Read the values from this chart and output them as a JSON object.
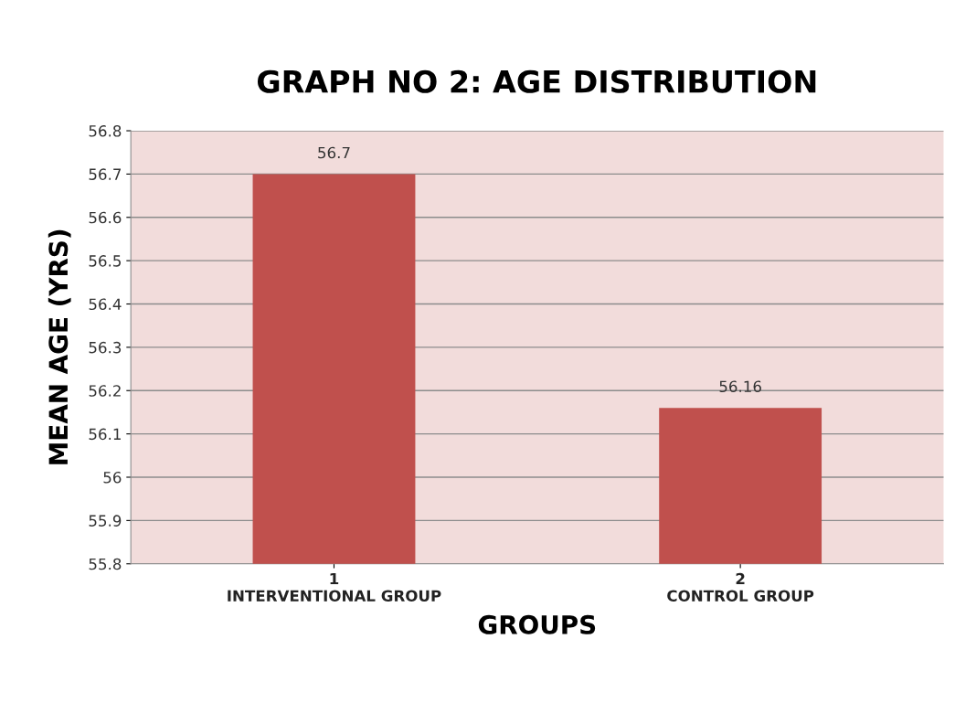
{
  "chart_data": {
    "type": "bar",
    "title": "GRAPH NO 2: AGE DISTRIBUTION",
    "xlabel": "GROUPS",
    "ylabel": "MEAN AGE (YRS)",
    "categories": [
      "1\nINTERVENTIONAL GROUP",
      "2\nCONTROL GROUP"
    ],
    "values": [
      56.7,
      56.16
    ],
    "color": "#c0504d",
    "ylim": [
      55.8,
      56.8
    ],
    "yticks": [
      55.8,
      55.9,
      56,
      56.1,
      56.2,
      56.3,
      56.4,
      56.5,
      56.6,
      56.7,
      56.8
    ],
    "grid": "y",
    "data_labels": true,
    "legend": false
  }
}
